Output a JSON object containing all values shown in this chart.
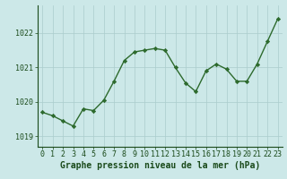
{
  "x": [
    0,
    1,
    2,
    3,
    4,
    5,
    6,
    7,
    8,
    9,
    10,
    11,
    12,
    13,
    14,
    15,
    16,
    17,
    18,
    19,
    20,
    21,
    22,
    23
  ],
  "y": [
    1019.7,
    1019.6,
    1019.45,
    1019.3,
    1019.8,
    1019.75,
    1020.05,
    1020.6,
    1021.2,
    1021.45,
    1021.5,
    1021.55,
    1021.5,
    1021.0,
    1020.55,
    1020.3,
    1020.9,
    1021.1,
    1020.95,
    1020.6,
    1020.6,
    1021.1,
    1021.75,
    1022.4
  ],
  "line_color": "#2d6a2d",
  "marker": "D",
  "marker_size": 2.2,
  "line_width": 1.0,
  "bg_color": "#cce8e8",
  "grid_color": "#aacccc",
  "xlabel": "Graphe pression niveau de la mer (hPa)",
  "xlabel_color": "#1a4a1a",
  "xlabel_fontsize": 7,
  "tick_color": "#1a4a1a",
  "tick_fontsize": 6,
  "ylim": [
    1018.7,
    1022.8
  ],
  "yticks": [
    1019,
    1020,
    1021,
    1022
  ],
  "xlim": [
    -0.5,
    23.5
  ],
  "xticks": [
    0,
    1,
    2,
    3,
    4,
    5,
    6,
    7,
    8,
    9,
    10,
    11,
    12,
    13,
    14,
    15,
    16,
    17,
    18,
    19,
    20,
    21,
    22,
    23
  ]
}
